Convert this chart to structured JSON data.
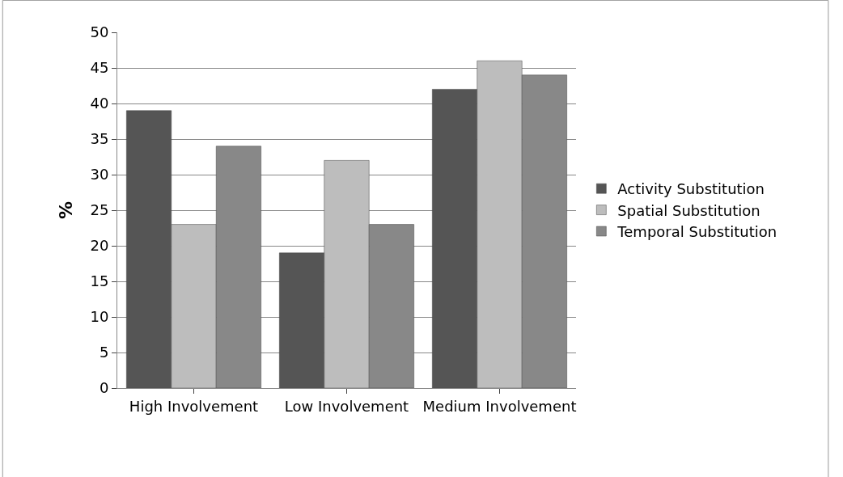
{
  "chart_data": {
    "type": "bar",
    "ylabel": "%",
    "categories": [
      "High Involvement",
      "Low Involvement",
      "Medium Involvement"
    ],
    "series": [
      {
        "name": "Activity Substitution",
        "color": "#555555",
        "values": [
          39,
          19,
          42
        ]
      },
      {
        "name": "Spatial Substitution",
        "color": "#bdbdbd",
        "values": [
          23,
          32,
          46
        ]
      },
      {
        "name": "Temporal Substitution",
        "color": "#888888",
        "values": [
          34,
          23,
          44
        ]
      }
    ],
    "ylim": [
      0,
      50
    ],
    "yticks": [
      0,
      5,
      10,
      15,
      20,
      25,
      30,
      35,
      40,
      45,
      50
    ],
    "grid": "y",
    "legend": "right"
  }
}
